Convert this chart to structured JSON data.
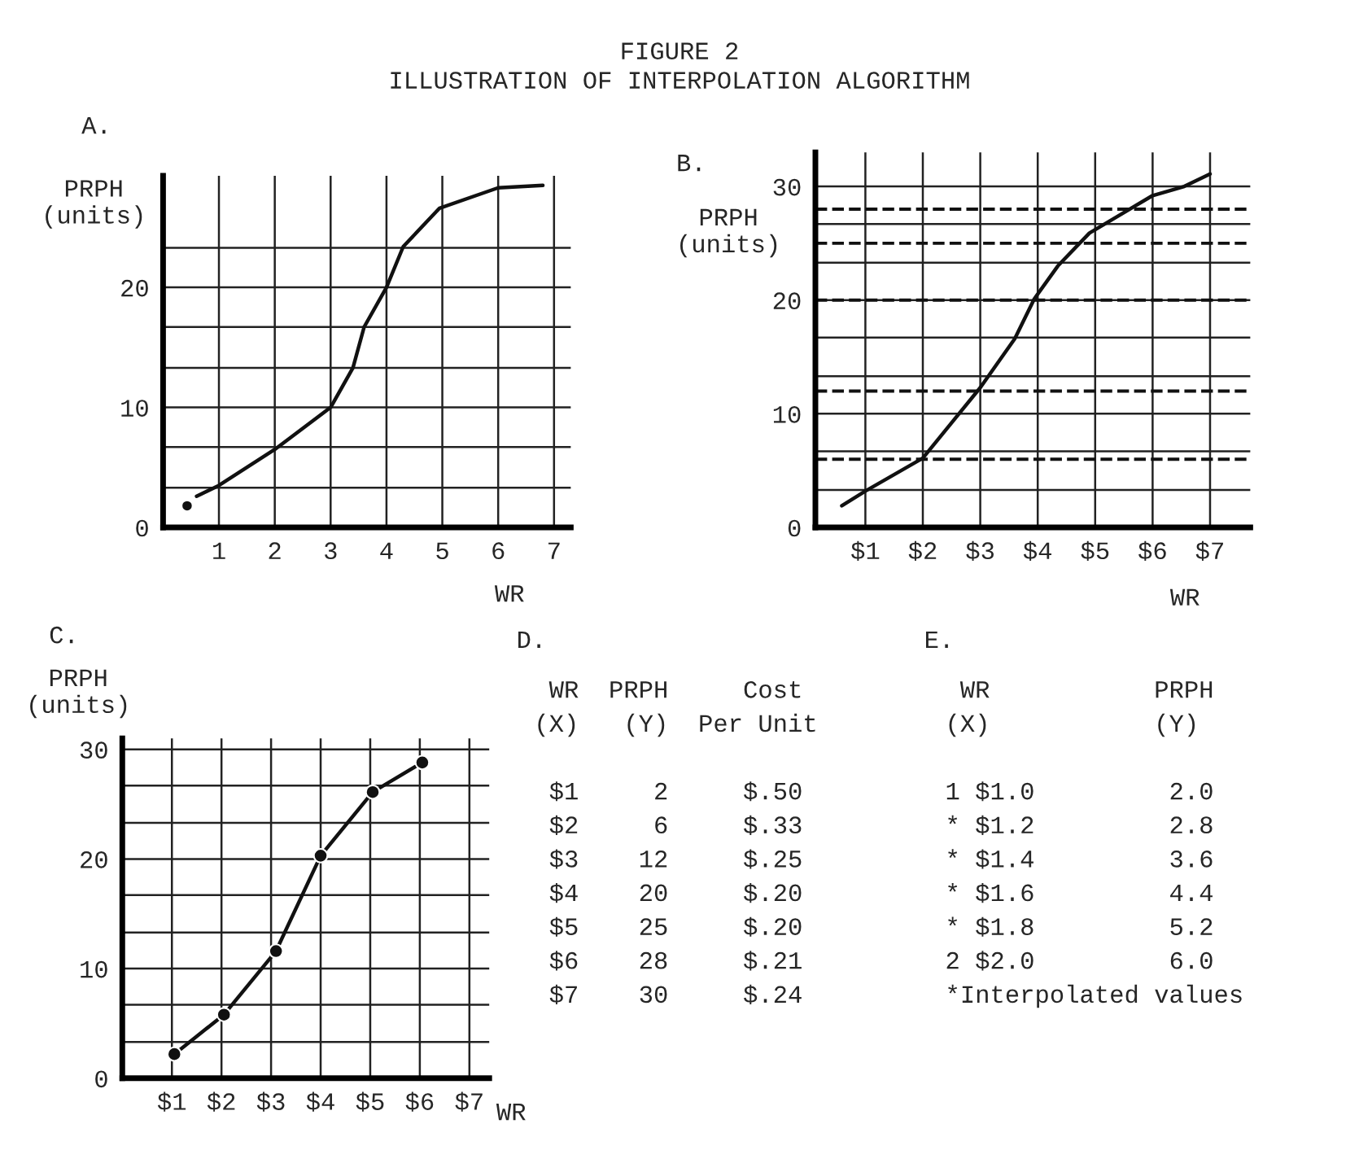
{
  "chart_data": [
    {
      "type": "line",
      "title": "A.",
      "ylabel": "PRPH\n(units)",
      "xlabel": "WR",
      "annotations": [
        "FIGURE 2",
        "ILLUSTRATION OF INTERPOLATION ALGORITHM"
      ],
      "series": [
        {
          "type": "line",
          "color": "#111111",
          "x": [
            0.6,
            1,
            2,
            3,
            3.4,
            3.6,
            4,
            4.3,
            4.95,
            6,
            6.8
          ],
          "values": [
            2.6,
            3.5,
            6.5,
            10,
            13.3,
            16.7,
            20,
            23.4,
            26.6,
            28.3,
            28.5
          ]
        },
        {
          "type": "scatter",
          "color": "#111111",
          "x": [
            0.43
          ],
          "values": [
            1.8
          ]
        }
      ],
      "xlim": [
        0,
        7.3
      ],
      "ylim": [
        0,
        29.3
      ],
      "xticks": [
        1,
        2,
        3,
        4,
        5,
        6,
        7
      ],
      "yticks": [
        0,
        {
          "value": 3.3,
          "label": null
        },
        {
          "value": 6.7,
          "label": null
        },
        10,
        {
          "value": 13.3,
          "label": null
        },
        {
          "value": 16.7,
          "label": null
        },
        20,
        {
          "value": 23.3,
          "label": null
        }
      ],
      "grid": true,
      "line_style": "solid"
    },
    {
      "type": "line",
      "title": "B.",
      "ylabel": "PRPH\n(units)",
      "xlabel": "WR",
      "series": [
        {
          "type": "line",
          "color": "#111111",
          "x": [
            0.59,
            1,
            2,
            3,
            3.6,
            3.94,
            4.35,
            4.9,
            6,
            6.55,
            7
          ],
          "values": [
            1.9,
            3.2,
            6.1,
            12.3,
            16.6,
            20.1,
            23,
            25.9,
            29.2,
            30,
            31.1
          ]
        }
      ],
      "xlim": [
        0.13,
        7.7
      ],
      "ylim": [
        0,
        33
      ],
      "xticks": [
        {
          "value": 1,
          "label": "$1"
        },
        {
          "value": 2,
          "label": "$2"
        },
        {
          "value": 3,
          "label": "$3"
        },
        {
          "value": 4,
          "label": "$4"
        },
        {
          "value": 5,
          "label": "$5"
        },
        {
          "value": 6,
          "label": "$6"
        },
        {
          "value": 7,
          "label": "$7"
        }
      ],
      "yticks": [
        0,
        {
          "value": 3.3,
          "label": null
        },
        {
          "value": 6.7,
          "label": null
        },
        10,
        {
          "value": 13.3,
          "label": null
        },
        {
          "value": 16.7,
          "label": null
        },
        20,
        {
          "value": 23.3,
          "label": null
        },
        {
          "value": 26.7,
          "label": null
        },
        30
      ],
      "ref_lines": [
        {
          "axis": "y",
          "value": 6,
          "line_style": "dashed"
        },
        {
          "axis": "y",
          "value": 12,
          "line_style": "dashed"
        },
        {
          "axis": "y",
          "value": 20,
          "line_style": "dashed"
        },
        {
          "axis": "y",
          "value": 25,
          "line_style": "dashed"
        },
        {
          "axis": "y",
          "value": 28,
          "line_style": "dashed"
        }
      ],
      "grid": true,
      "line_style": "solid"
    },
    {
      "type": "line",
      "title": "C.",
      "ylabel": "PRPH\n(units)",
      "xlabel": "WR",
      "series": [
        {
          "type": "line",
          "color": "#111111",
          "x": [
            1.05,
            2.05,
            3.1,
            4.0,
            5.05,
            6.05
          ],
          "values": [
            2.2,
            5.8,
            11.6,
            20.3,
            26.1,
            28.8
          ]
        }
      ],
      "xlim": [
        0,
        7.4
      ],
      "ylim": [
        0,
        31
      ],
      "xticks": [
        {
          "value": 1,
          "label": "$1"
        },
        {
          "value": 2,
          "label": "$2"
        },
        {
          "value": 3,
          "label": "$3"
        },
        {
          "value": 4,
          "label": "$4"
        },
        {
          "value": 5,
          "label": "$5"
        },
        {
          "value": 6,
          "label": "$6"
        },
        {
          "value": 7,
          "label": "$7"
        }
      ],
      "yticks": [
        0,
        {
          "value": 3.3,
          "label": null
        },
        {
          "value": 6.7,
          "label": null
        },
        10,
        {
          "value": 13.3,
          "label": null
        },
        {
          "value": 16.7,
          "label": null
        },
        20,
        {
          "value": 23.3,
          "label": null
        },
        {
          "value": 26.7,
          "label": null
        },
        30
      ],
      "grid": true,
      "line_style": "solid",
      "marker": "circle"
    },
    {
      "type": "other",
      "title": "D.",
      "annotations": [
        " WR  PRPH     Cost",
        "(X)   (Y)  Per Unit",
        " $1     2     $.50",
        " $2     6     $.33",
        " $3    12     $.25",
        " $4    20     $.20",
        " $5    25     $.20",
        " $6    28     $.21",
        " $7    30     $.24"
      ]
    },
    {
      "type": "other",
      "title": "E.",
      "annotations": [
        " WR           PRPH",
        "(X)           (Y)",
        "1 $1.0         2.0",
        "* $1.2         2.8",
        "* $1.4         3.6",
        "* $1.6         4.4",
        "* $1.8         5.2",
        "2 $2.0         6.0",
        "*Interpolated values"
      ]
    }
  ]
}
